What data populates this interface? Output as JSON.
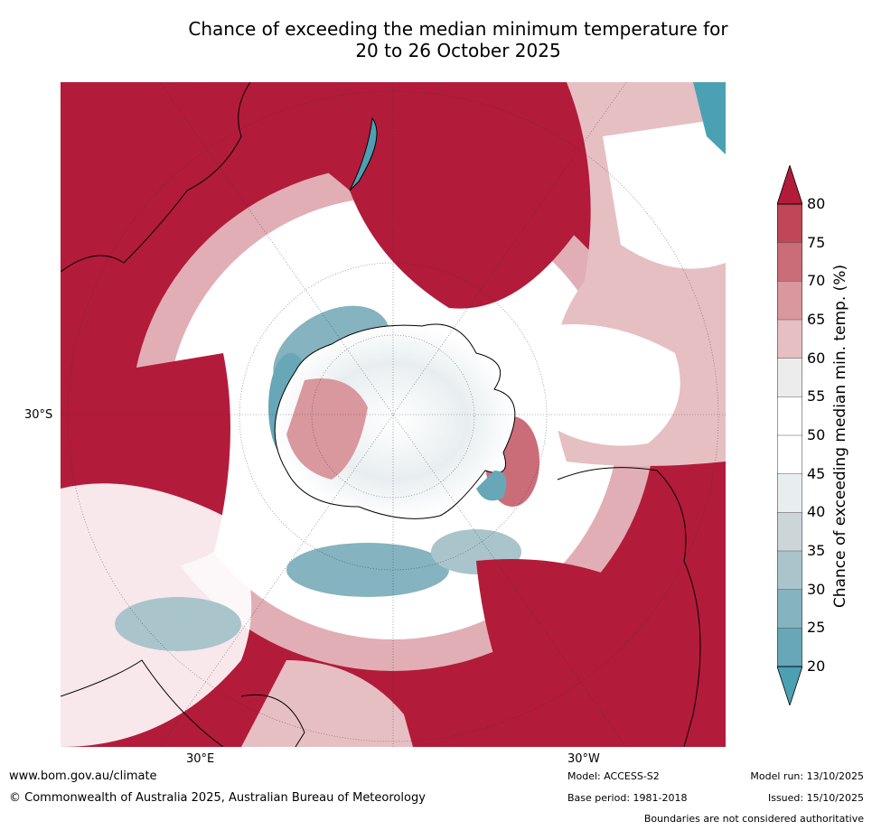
{
  "title": {
    "line1": "Chance of exceeding the median minimum temperature for",
    "line2": "20 to 26 October 2025"
  },
  "map": {
    "lat_label": "30°S",
    "lon_label_east": "30°E",
    "lon_label_west": "30°W"
  },
  "colorbar": {
    "label": "Chance of exceeding median min. temp. (%)",
    "ticks": [
      "80",
      "75",
      "70",
      "65",
      "60",
      "55",
      "50",
      "45",
      "40",
      "35",
      "30",
      "25",
      "20"
    ],
    "colors": [
      "#b31b3a",
      "#bf4757",
      "#cb6d78",
      "#d9979e",
      "#e6bfc3",
      "#ececec",
      "#ffffff",
      "#ffffff",
      "#e8eef0",
      "#ccd6d9",
      "#a9c5cb",
      "#85b3bf",
      "#67a7b7",
      "#4ba1b3"
    ]
  },
  "footer": {
    "website": "www.bom.gov.au/climate",
    "copyright": "© Commonwealth of Australia 2025, Australian Bureau of Meteorology",
    "model": "Model: ACCESS-S2",
    "base_period": "Base period: 1981-2018",
    "model_run": "Model run: 13/10/2025",
    "issued": "Issued: 15/10/2025",
    "disclaimer": "Boundaries are not considered authoritative"
  }
}
